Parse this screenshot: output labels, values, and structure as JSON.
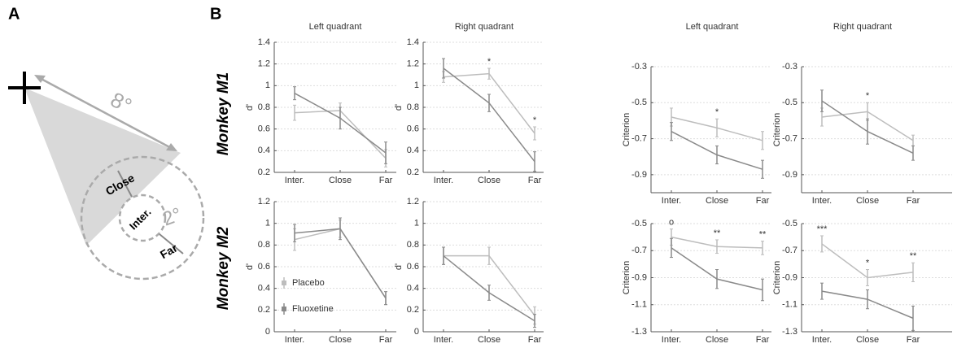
{
  "panel_labels": [
    "A",
    "B"
  ],
  "row_labels": [
    "Monkey M1",
    "Monkey M2"
  ],
  "diagram": {
    "outer_angle": "8°",
    "inner_angle": "2°",
    "regions": [
      "Close",
      "Inter.",
      "Far"
    ]
  },
  "chart_data": [
    {
      "type": "line",
      "title": "Left quadrant",
      "ylabel": "d'",
      "categories": [
        "Inter.",
        "Close",
        "Far"
      ],
      "ylim": [
        0.2,
        1.4
      ],
      "yticks": [
        0.2,
        0.4,
        0.6,
        0.8,
        1,
        1.2,
        1.4
      ],
      "grid": true,
      "series": [
        {
          "name": "Placebo",
          "color": "#bdbdbd",
          "values": [
            0.75,
            0.77,
            0.33
          ],
          "errors": [
            0.07,
            0.07,
            0.08
          ]
        },
        {
          "name": "Fluoxetine",
          "color": "#8a8a8a",
          "values": [
            0.93,
            0.7,
            0.38
          ],
          "errors": [
            0.06,
            0.1,
            0.1
          ]
        }
      ]
    },
    {
      "type": "line",
      "title": "Right quadrant",
      "ylabel": "d'",
      "categories": [
        "Inter.",
        "Close",
        "Far"
      ],
      "ylim": [
        0.2,
        1.4
      ],
      "yticks": [
        0.2,
        0.4,
        0.6,
        0.8,
        1,
        1.2,
        1.4
      ],
      "grid": true,
      "series": [
        {
          "name": "Placebo",
          "color": "#bdbdbd",
          "values": [
            1.08,
            1.11,
            0.56
          ],
          "errors": [
            0.05,
            0.05,
            0.06
          ]
        },
        {
          "name": "Fluoxetine",
          "color": "#8a8a8a",
          "values": [
            1.16,
            0.84,
            0.3
          ],
          "errors": [
            0.09,
            0.08,
            0.09
          ]
        }
      ],
      "annotations": [
        {
          "text": "*",
          "x": "Close"
        },
        {
          "text": "*",
          "x": "Far"
        }
      ]
    },
    {
      "type": "line",
      "title": "Left quadrant",
      "ylabel": "Criterion",
      "categories": [
        "Inter.",
        "Close",
        "Far"
      ],
      "ylim": [
        -1.0,
        -0.3
      ],
      "yticks": [
        -0.3,
        -0.5,
        -0.7,
        -0.9
      ],
      "grid": true,
      "series": [
        {
          "name": "Placebo",
          "color": "#bdbdbd",
          "values": [
            -0.58,
            -0.64,
            -0.71
          ],
          "errors": [
            0.05,
            0.05,
            0.05
          ]
        },
        {
          "name": "Fluoxetine",
          "color": "#8a8a8a",
          "values": [
            -0.66,
            -0.79,
            -0.87
          ],
          "errors": [
            0.05,
            0.05,
            0.05
          ]
        }
      ],
      "annotations": [
        {
          "text": "*",
          "x": "Close"
        }
      ]
    },
    {
      "type": "line",
      "title": "Right quadrant",
      "ylabel": "Criterion",
      "categories": [
        "Inter.",
        "Close",
        "Far"
      ],
      "ylim": [
        -1.0,
        -0.3
      ],
      "yticks": [
        -0.3,
        -0.5,
        -0.7,
        -0.9
      ],
      "grid": true,
      "series": [
        {
          "name": "Placebo",
          "color": "#bdbdbd",
          "values": [
            -0.58,
            -0.55,
            -0.71
          ],
          "errors": [
            0.05,
            0.05,
            0.03
          ]
        },
        {
          "name": "Fluoxetine",
          "color": "#8a8a8a",
          "values": [
            -0.49,
            -0.66,
            -0.78
          ],
          "errors": [
            0.06,
            0.07,
            0.04
          ]
        }
      ],
      "annotations": [
        {
          "text": "*",
          "x": "Close"
        }
      ]
    },
    {
      "type": "line",
      "ylabel": "d'",
      "categories": [
        "Inter.",
        "Close",
        "Far"
      ],
      "ylim": [
        0,
        1.2
      ],
      "yticks": [
        0,
        0.2,
        0.4,
        0.6,
        0.8,
        1,
        1.2
      ],
      "grid": true,
      "legend": "lower left",
      "series": [
        {
          "name": "Placebo",
          "color": "#bdbdbd",
          "values": [
            0.85,
            0.95,
            0.31
          ],
          "errors": [
            0.1,
            0.08,
            0.06
          ]
        },
        {
          "name": "Fluoxetine",
          "color": "#8a8a8a",
          "values": [
            0.91,
            0.95,
            0.31
          ],
          "errors": [
            0.08,
            0.1,
            0.06
          ]
        }
      ]
    },
    {
      "type": "line",
      "ylabel": "d'",
      "categories": [
        "Inter.",
        "Close",
        "Far"
      ],
      "ylim": [
        0,
        1.2
      ],
      "yticks": [
        0,
        0.2,
        0.4,
        0.6,
        0.8,
        1,
        1.2
      ],
      "grid": true,
      "series": [
        {
          "name": "Placebo",
          "color": "#bdbdbd",
          "values": [
            0.7,
            0.7,
            0.15
          ],
          "errors": [
            0.08,
            0.08,
            0.08
          ]
        },
        {
          "name": "Fluoxetine",
          "color": "#8a8a8a",
          "values": [
            0.7,
            0.36,
            0.1
          ],
          "errors": [
            0.08,
            0.07,
            0.06
          ]
        }
      ]
    },
    {
      "type": "line",
      "ylabel": "Criterion",
      "categories": [
        "Inter.",
        "Close",
        "Far"
      ],
      "ylim": [
        -1.3,
        -0.5
      ],
      "yticks": [
        -0.5,
        -0.7,
        -0.9,
        -1.1,
        -1.3
      ],
      "grid": true,
      "series": [
        {
          "name": "Placebo",
          "color": "#bdbdbd",
          "values": [
            -0.6,
            -0.67,
            -0.68
          ],
          "errors": [
            0.06,
            0.05,
            0.05
          ]
        },
        {
          "name": "Fluoxetine",
          "color": "#8a8a8a",
          "values": [
            -0.68,
            -0.91,
            -0.99
          ],
          "errors": [
            0.07,
            0.07,
            0.08
          ]
        }
      ],
      "annotations": [
        {
          "text": "o",
          "x": "Inter."
        },
        {
          "text": "**",
          "x": "Close"
        },
        {
          "text": "**",
          "x": "Far"
        }
      ]
    },
    {
      "type": "line",
      "ylabel": "Criterion",
      "categories": [
        "Inter.",
        "Close",
        "Far"
      ],
      "ylim": [
        -1.3,
        -0.5
      ],
      "yticks": [
        -0.5,
        -0.7,
        -0.9,
        -1.1,
        -1.3
      ],
      "grid": true,
      "series": [
        {
          "name": "Placebo",
          "color": "#bdbdbd",
          "values": [
            -0.65,
            -0.9,
            -0.86
          ],
          "errors": [
            0.06,
            0.06,
            0.07
          ]
        },
        {
          "name": "Fluoxetine",
          "color": "#8a8a8a",
          "values": [
            -1.0,
            -1.06,
            -1.2
          ],
          "errors": [
            0.06,
            0.07,
            0.09
          ]
        }
      ],
      "annotations": [
        {
          "text": "***",
          "x": "Inter."
        },
        {
          "text": "*",
          "x": "Close"
        },
        {
          "text": "**",
          "x": "Far"
        }
      ]
    }
  ]
}
